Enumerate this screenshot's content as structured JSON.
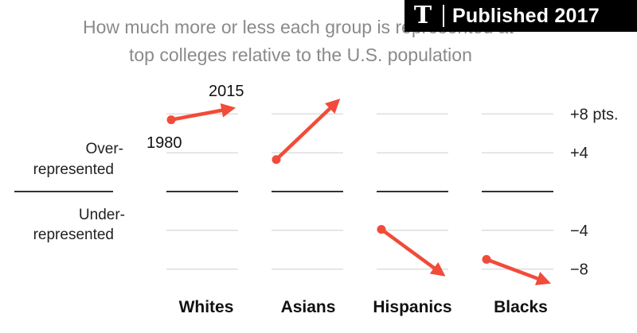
{
  "badge": {
    "logo": "T",
    "text": "Published 2017"
  },
  "chart_data": {
    "type": "line",
    "title_lines": [
      "How much more or less each group is represented at",
      "top colleges relative to the U.S. population"
    ],
    "ylim": [
      -11,
      11
    ],
    "yticks": [
      {
        "value": 8,
        "label": "+8 pts."
      },
      {
        "value": 4,
        "label": "+4"
      },
      {
        "value": 0,
        "label": ""
      },
      {
        "value": -4,
        "label": "−4"
      },
      {
        "value": -8,
        "label": "−8"
      }
    ],
    "side_labels": {
      "over": [
        "Over-",
        "represented"
      ],
      "under": [
        "Under-",
        "represented"
      ]
    },
    "start_year": "1980",
    "end_year": "2015",
    "series": [
      {
        "name": "Whites",
        "start": 7.4,
        "end": 8.6
      },
      {
        "name": "Asians",
        "start": 3.3,
        "end": 9.4
      },
      {
        "name": "Hispanics",
        "start": -3.9,
        "end": -8.6
      },
      {
        "name": "Blacks",
        "start": -7.0,
        "end": -9.4
      }
    ],
    "colors": {
      "line": "#f24b39",
      "grid": "#dddddd",
      "zero": "#333333"
    }
  }
}
